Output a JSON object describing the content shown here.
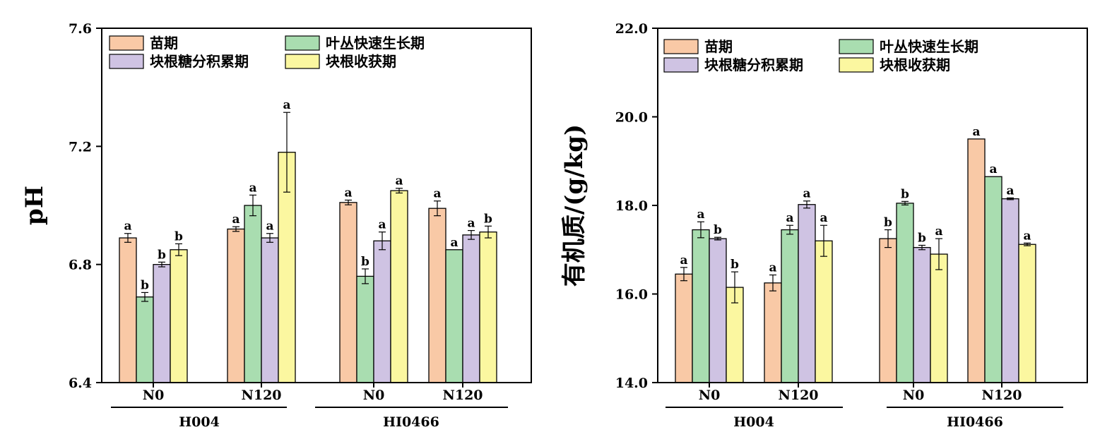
{
  "colors": {
    "series": [
      "#F9C9A6",
      "#A9DDB0",
      "#CFC3E3",
      "#FBF7A0"
    ],
    "axis": "#000000"
  },
  "chart_data": [
    {
      "type": "bar",
      "ylabel": "pH",
      "ylim": [
        6.4,
        7.6
      ],
      "yticks": [
        "6.4",
        "6.8",
        "7.2",
        "7.6"
      ],
      "groups": [
        "H004",
        "HI0466"
      ],
      "categories": [
        "N0",
        "N120",
        "N0",
        "N120"
      ],
      "legend": "top-left",
      "series": [
        {
          "name": "苗期",
          "values": [
            6.89,
            6.92,
            7.01,
            6.99
          ],
          "errors": [
            0.015,
            0.008,
            0.008,
            0.025
          ],
          "letters": [
            "a",
            "a",
            "a",
            "a"
          ]
        },
        {
          "name": "叶丛快速生长期",
          "values": [
            6.69,
            7.0,
            6.76,
            6.85
          ],
          "errors": [
            0.015,
            0.035,
            0.025,
            0.0
          ],
          "letters": [
            "b",
            "a",
            "b",
            "a"
          ]
        },
        {
          "name": "块根糖分积累期",
          "values": [
            6.8,
            6.89,
            6.88,
            6.9
          ],
          "errors": [
            0.008,
            0.015,
            0.03,
            0.015
          ],
          "letters": [
            "b",
            "a",
            "a",
            "a"
          ]
        },
        {
          "name": "块根收获期",
          "values": [
            6.85,
            7.18,
            7.05,
            6.91
          ],
          "errors": [
            0.02,
            0.135,
            0.008,
            0.02
          ],
          "letters": [
            "b",
            "a",
            "a",
            "b"
          ]
        }
      ]
    },
    {
      "type": "bar",
      "ylabel": "有机质/(g/kg)",
      "ylim": [
        14.0,
        22.0
      ],
      "yticks": [
        "14.0",
        "16.0",
        "18.0",
        "20.0",
        "22.0"
      ],
      "groups": [
        "H004",
        "HI0466"
      ],
      "categories": [
        "N0",
        "N120",
        "N0",
        "N120"
      ],
      "legend": "top-left",
      "series": [
        {
          "name": "苗期",
          "values": [
            16.45,
            16.25,
            17.25,
            19.5
          ],
          "errors": [
            0.15,
            0.18,
            0.2,
            0.0
          ],
          "letters": [
            "a",
            "a",
            "b",
            "a"
          ]
        },
        {
          "name": "叶丛快速生长期",
          "values": [
            17.45,
            17.45,
            18.05,
            18.65
          ],
          "errors": [
            0.18,
            0.1,
            0.04,
            0.0
          ],
          "letters": [
            "a",
            "a",
            "b",
            "a"
          ]
        },
        {
          "name": "块根糖分积累期",
          "values": [
            17.25,
            18.02,
            17.05,
            18.15
          ],
          "errors": [
            0.03,
            0.08,
            0.05,
            0.02
          ],
          "letters": [
            "b",
            "a",
            "b",
            "a"
          ]
        },
        {
          "name": "块根收获期",
          "values": [
            16.15,
            17.2,
            16.9,
            17.12
          ],
          "errors": [
            0.35,
            0.35,
            0.35,
            0.03
          ],
          "letters": [
            "b",
            "a",
            "a",
            "a"
          ]
        }
      ]
    }
  ]
}
